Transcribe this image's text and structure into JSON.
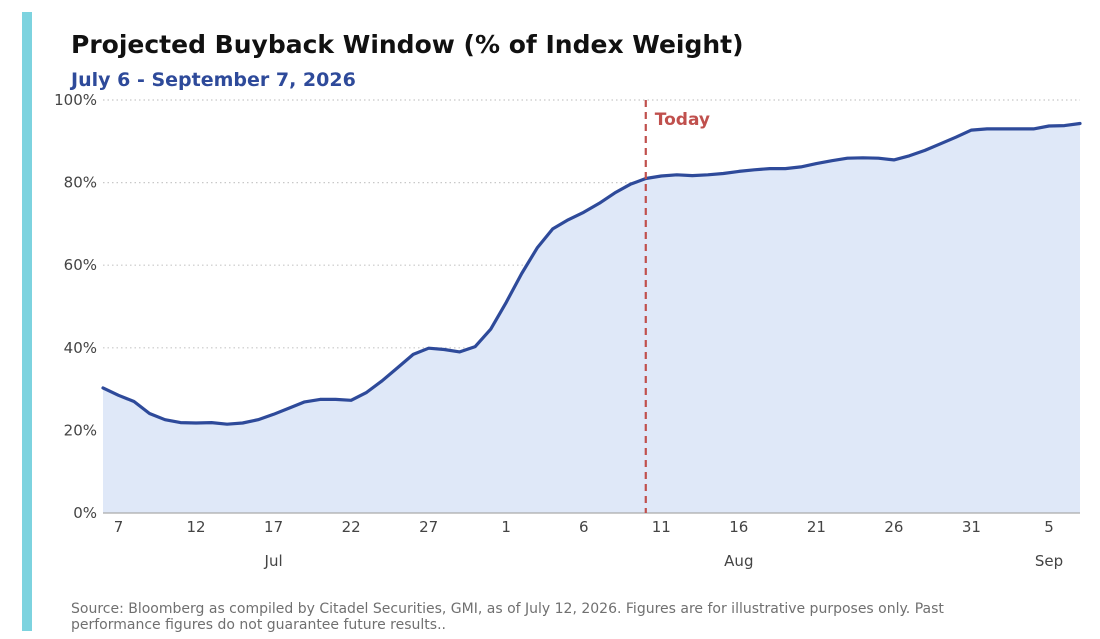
{
  "colors": {
    "accent_bar": "#7dd3df",
    "line": "#2e4a9a",
    "area": "#dfe8f8",
    "today": "#c0504d",
    "grid": "#c8c8c8",
    "axis": "#aaaaaa"
  },
  "chart_data": {
    "type": "area",
    "title": "Projected Buyback Window (% of Index Weight)",
    "subtitle": "July 6 - September 7, 2026",
    "source": "Source: Bloomberg as compiled by Citadel Securities, GMI, as of July 12, 2026. Figures are for illustrative purposes only. Past performance figures do not guarantee future results..",
    "xlim": [
      "2026-07-06",
      "2026-09-07"
    ],
    "ylim": [
      0,
      100
    ],
    "yticks": [
      {
        "value": 0,
        "label": "0%"
      },
      {
        "value": 20,
        "label": "20%"
      },
      {
        "value": 40,
        "label": "40%"
      },
      {
        "value": 60,
        "label": "60%"
      },
      {
        "value": 80,
        "label": "80%"
      },
      {
        "value": 100,
        "label": "100%"
      }
    ],
    "xticks": [
      {
        "date": "2026-07-07",
        "label": "7"
      },
      {
        "date": "2026-07-12",
        "label": "12"
      },
      {
        "date": "2026-07-17",
        "label": "17"
      },
      {
        "date": "2026-07-22",
        "label": "22"
      },
      {
        "date": "2026-07-27",
        "label": "27"
      },
      {
        "date": "2026-08-01",
        "label": "1"
      },
      {
        "date": "2026-08-06",
        "label": "6"
      },
      {
        "date": "2026-08-11",
        "label": "11"
      },
      {
        "date": "2026-08-16",
        "label": "16"
      },
      {
        "date": "2026-08-21",
        "label": "21"
      },
      {
        "date": "2026-08-26",
        "label": "26"
      },
      {
        "date": "2026-08-31",
        "label": "31"
      },
      {
        "date": "2026-09-05",
        "label": "5"
      }
    ],
    "month_labels": [
      {
        "date": "2026-07-17",
        "label": "Jul"
      },
      {
        "date": "2026-08-16",
        "label": "Aug"
      },
      {
        "date": "2026-09-05",
        "label": "Sep"
      }
    ],
    "grid": "horizontal dotted",
    "annotation": {
      "date": "2026-08-10",
      "label": "Today"
    },
    "series": [
      {
        "x": [
          "2026-07-06",
          "2026-07-07",
          "2026-07-08",
          "2026-07-09",
          "2026-07-10",
          "2026-07-11",
          "2026-07-12",
          "2026-07-13",
          "2026-07-14",
          "2026-07-15",
          "2026-07-16",
          "2026-07-17",
          "2026-07-18",
          "2026-07-19",
          "2026-07-20",
          "2026-07-21",
          "2026-07-22",
          "2026-07-23",
          "2026-07-24",
          "2026-07-25",
          "2026-07-26",
          "2026-07-27",
          "2026-07-28",
          "2026-07-29",
          "2026-07-30",
          "2026-07-31",
          "2026-08-01",
          "2026-08-02",
          "2026-08-03",
          "2026-08-04",
          "2026-08-05",
          "2026-08-06",
          "2026-08-07",
          "2026-08-08",
          "2026-08-09",
          "2026-08-10",
          "2026-08-11",
          "2026-08-12",
          "2026-08-13",
          "2026-08-14",
          "2026-08-15",
          "2026-08-16",
          "2026-08-17",
          "2026-08-18",
          "2026-08-19",
          "2026-08-20",
          "2026-08-21",
          "2026-08-22",
          "2026-08-23",
          "2026-08-24",
          "2026-08-25",
          "2026-08-26",
          "2026-08-27",
          "2026-08-28",
          "2026-08-29",
          "2026-08-30",
          "2026-08-31",
          "2026-09-01",
          "2026-09-02",
          "2026-09-03",
          "2026-09-04",
          "2026-09-05",
          "2026-09-06",
          "2026-09-07"
        ],
        "values": [
          30.3,
          28.5,
          27.0,
          24.1,
          22.6,
          21.9,
          21.8,
          21.9,
          21.5,
          21.8,
          22.6,
          23.9,
          25.4,
          26.9,
          27.5,
          27.5,
          27.3,
          29.2,
          32.0,
          35.2,
          38.4,
          39.9,
          39.6,
          39.0,
          40.3,
          44.5,
          51.0,
          58.0,
          64.2,
          68.8,
          71.0,
          72.8,
          75.0,
          77.5,
          79.6,
          81.0,
          81.6,
          81.9,
          81.7,
          81.9,
          82.2,
          82.7,
          83.1,
          83.4,
          83.4,
          83.8,
          84.6,
          85.3,
          85.9,
          86.0,
          85.9,
          85.5,
          86.5,
          87.8,
          89.4,
          91.0,
          92.7,
          93.0,
          93.0,
          93.0,
          93.0,
          93.7,
          93.8,
          94.3
        ]
      }
    ]
  }
}
